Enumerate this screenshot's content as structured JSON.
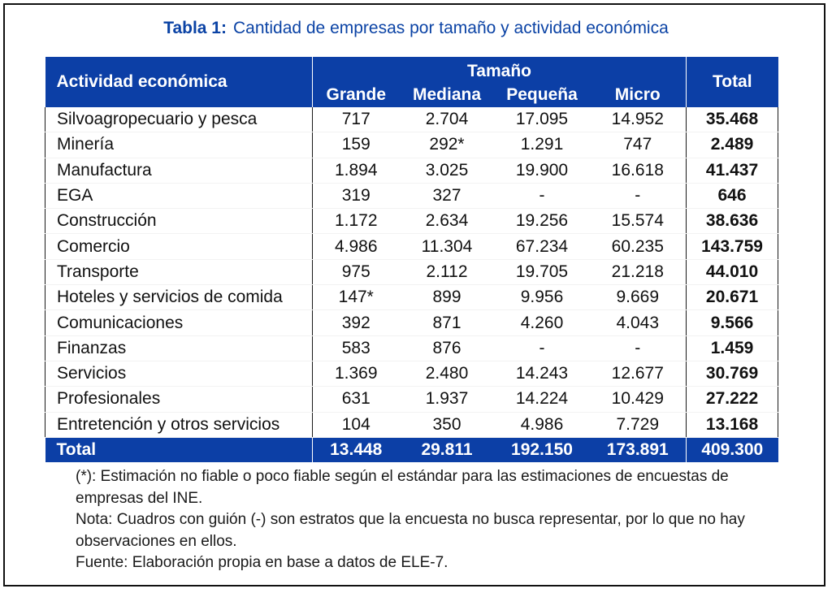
{
  "title": {
    "label": "Tabla 1:",
    "text": "Cantidad de empresas por tamaño y actividad económica"
  },
  "table": {
    "header": {
      "activity": "Actividad económica",
      "size_group": "Tamaño",
      "sizes": [
        "Grande",
        "Mediana",
        "Pequeña",
        "Micro"
      ],
      "total": "Total"
    },
    "rows": [
      {
        "name": "Silvoagropecuario y pesca",
        "values": [
          "717",
          "2.704",
          "17.095",
          "14.952"
        ],
        "total": "35.468"
      },
      {
        "name": "Minería",
        "values": [
          "159",
          "292*",
          "1.291",
          "747"
        ],
        "total": "2.489"
      },
      {
        "name": "Manufactura",
        "values": [
          "1.894",
          "3.025",
          "19.900",
          "16.618"
        ],
        "total": "41.437"
      },
      {
        "name": "EGA",
        "values": [
          "319",
          "327",
          "-",
          "-"
        ],
        "total": "646"
      },
      {
        "name": "Construcción",
        "values": [
          "1.172",
          "2.634",
          "19.256",
          "15.574"
        ],
        "total": "38.636"
      },
      {
        "name": "Comercio",
        "values": [
          "4.986",
          "11.304",
          "67.234",
          "60.235"
        ],
        "total": "143.759"
      },
      {
        "name": "Transporte",
        "values": [
          "975",
          "2.112",
          "19.705",
          "21.218"
        ],
        "total": "44.010"
      },
      {
        "name": "Hoteles y servicios de comida",
        "values": [
          "147*",
          "899",
          "9.956",
          "9.669"
        ],
        "total": "20.671"
      },
      {
        "name": "Comunicaciones",
        "values": [
          "392",
          "871",
          "4.260",
          "4.043"
        ],
        "total": "9.566"
      },
      {
        "name": "Finanzas",
        "values": [
          "583",
          "876",
          "-",
          "-"
        ],
        "total": "1.459"
      },
      {
        "name": "Servicios",
        "values": [
          "1.369",
          "2.480",
          "14.243",
          "12.677"
        ],
        "total": "30.769"
      },
      {
        "name": "Profesionales",
        "values": [
          "631",
          "1.937",
          "14.224",
          "10.429"
        ],
        "total": "27.222"
      },
      {
        "name": "Entretención y otros servicios",
        "values": [
          "104",
          "350",
          "4.986",
          "7.729"
        ],
        "total": "13.168"
      }
    ],
    "footer": {
      "label": "Total",
      "values": [
        "13.448",
        "29.811",
        "192.150",
        "173.891"
      ],
      "total": "409.300"
    }
  },
  "notes": {
    "asterisk": "(*): Estimación no fiable o poco fiable según el estándar para las estimaciones de encuestas de empresas del INE.",
    "nota": "Nota: Cuadros con guión (-) son estratos que la encuesta no busca representar, por lo que no hay observaciones en ellos.",
    "fuente": "Fuente: Elaboración propia en base a datos de ELE-7."
  },
  "colors": {
    "header_bg": "#0c3fa6",
    "title": "#0b43a5"
  }
}
